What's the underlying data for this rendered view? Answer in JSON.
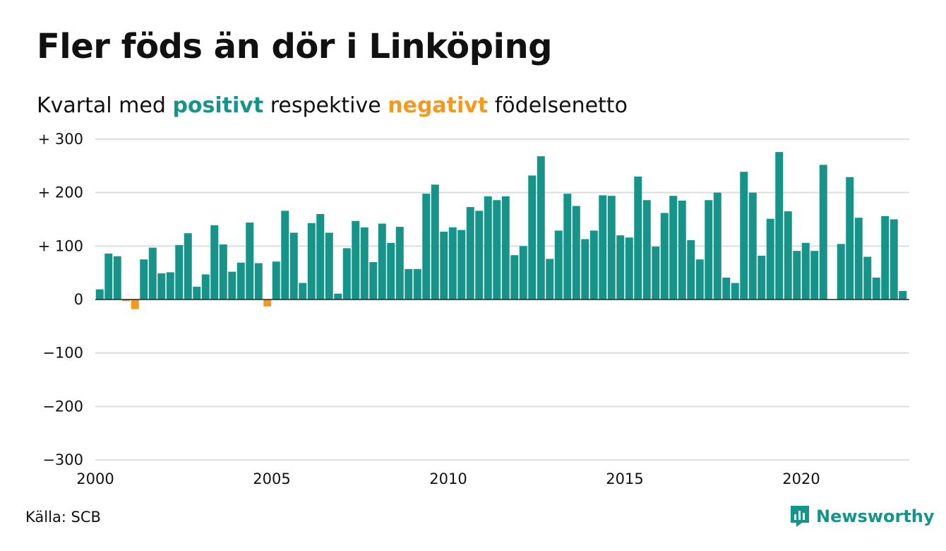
{
  "title": "Fler föds än dör i Linköping",
  "subtitle": {
    "prefix": "Kvartal med",
    "positive": "positivt",
    "middle": "respektive",
    "negative": "negativt",
    "suffix": "födelsenetto"
  },
  "source": "Källa: SCB",
  "brand": "Newsworthy",
  "colors": {
    "positive": "#17948a",
    "negative": "#f39a1e",
    "grid": "#dddddd",
    "zero": "#222222"
  },
  "chart_data": {
    "type": "bar",
    "x_start": "2000 Q1",
    "y_ticks": [
      {
        "value": 300,
        "label": "+ 300"
      },
      {
        "value": 200,
        "label": "+ 200"
      },
      {
        "value": 100,
        "label": "+ 100"
      },
      {
        "value": 0,
        "label": "0"
      },
      {
        "value": -100,
        "label": "−100"
      },
      {
        "value": -200,
        "label": "−200"
      },
      {
        "value": -300,
        "label": "−300"
      }
    ],
    "x_ticks": [
      "2000",
      "2005",
      "2010",
      "2015",
      "2020"
    ],
    "ylim": [
      -300,
      300
    ],
    "values": [
      19,
      86,
      81,
      -3,
      -18,
      75,
      97,
      49,
      51,
      102,
      124,
      24,
      47,
      139,
      103,
      52,
      69,
      144,
      68,
      -13,
      71,
      166,
      125,
      31,
      143,
      160,
      125,
      11,
      96,
      147,
      135,
      70,
      142,
      106,
      136,
      57,
      57,
      198,
      215,
      127,
      135,
      130,
      173,
      166,
      193,
      186,
      193,
      83,
      100,
      232,
      268,
      76,
      129,
      198,
      175,
      113,
      129,
      195,
      194,
      120,
      116,
      230,
      186,
      99,
      162,
      194,
      185,
      111,
      75,
      186,
      200,
      41,
      31,
      239,
      200,
      82,
      151,
      276,
      165,
      91,
      106,
      91,
      252,
      0,
      104,
      229,
      153,
      80,
      41,
      156,
      150,
      16
    ]
  }
}
